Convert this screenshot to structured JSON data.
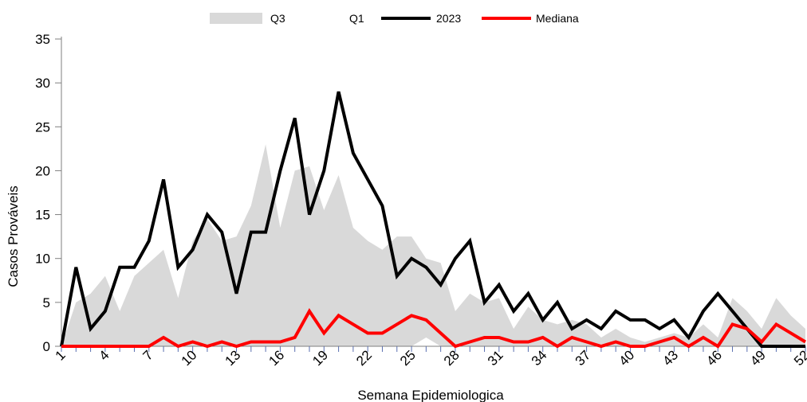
{
  "chart_data": {
    "type": "line",
    "xlabel": "Semana Epidemiologica",
    "ylabel": "Casos Prováveis",
    "ylim": [
      0,
      35
    ],
    "yticks": [
      0,
      5,
      10,
      15,
      20,
      25,
      30,
      35
    ],
    "x": [
      1,
      2,
      3,
      4,
      5,
      6,
      7,
      8,
      9,
      10,
      11,
      12,
      13,
      14,
      15,
      16,
      17,
      18,
      19,
      20,
      21,
      22,
      23,
      24,
      25,
      26,
      27,
      28,
      29,
      30,
      31,
      32,
      33,
      34,
      35,
      36,
      37,
      38,
      39,
      40,
      41,
      42,
      43,
      44,
      45,
      46,
      47,
      48,
      49,
      50,
      51,
      52
    ],
    "xtick_labels": [
      "1",
      "4",
      "7",
      "10",
      "13",
      "16",
      "19",
      "22",
      "25",
      "28",
      "31",
      "34",
      "37",
      "40",
      "43",
      "46",
      "49",
      "52"
    ],
    "grid": false,
    "legend_position": "top",
    "series": [
      {
        "name": "Q3",
        "kind": "area",
        "color": "#d9d9d9",
        "values": [
          0,
          5,
          6,
          8,
          4,
          8,
          9.5,
          11,
          5.5,
          12,
          14.5,
          12,
          12.5,
          16,
          23,
          13.5,
          20,
          20.5,
          15.5,
          19.5,
          13.5,
          12,
          11,
          12.5,
          12.5,
          10,
          9.5,
          4,
          6,
          5,
          5.5,
          2,
          4.5,
          3,
          2.5,
          3,
          2.5,
          1,
          2,
          1,
          0.5,
          1,
          1.5,
          1,
          2.5,
          1,
          5.5,
          4,
          2,
          5.5,
          3.5,
          2
        ]
      },
      {
        "name": "Q1",
        "kind": "area",
        "color": "#ffffff",
        "values": [
          0,
          0,
          0,
          0,
          0,
          0,
          0,
          0,
          0,
          0,
          0,
          0,
          0,
          0,
          0,
          0,
          0,
          0,
          0,
          0,
          0,
          0,
          0,
          0,
          0,
          1,
          0,
          0,
          0,
          0,
          0,
          0,
          0,
          0,
          0,
          0,
          0,
          0,
          0,
          0,
          0,
          0,
          0,
          0,
          0,
          0,
          0,
          0,
          0,
          0,
          0,
          0
        ]
      },
      {
        "name": "2023",
        "kind": "line",
        "color": "#000000",
        "values": [
          0,
          9,
          2,
          4,
          9,
          9,
          12,
          19,
          9,
          11,
          15,
          13,
          6,
          13,
          13,
          20,
          26,
          15,
          20,
          29,
          22,
          19,
          16,
          8,
          10,
          9,
          7,
          10,
          12,
          5,
          7,
          4,
          6,
          3,
          5,
          2,
          3,
          2,
          4,
          3,
          3,
          2,
          3,
          1,
          4,
          6,
          4,
          2,
          0,
          0,
          0,
          0
        ]
      },
      {
        "name": "Mediana",
        "kind": "line",
        "color": "#ff0000",
        "values": [
          0,
          0,
          0,
          0,
          0,
          0,
          0,
          1,
          0,
          0.5,
          0,
          0.5,
          0,
          0.5,
          0.5,
          0.5,
          1,
          4,
          1.5,
          3.5,
          2.5,
          1.5,
          1.5,
          2.5,
          3.5,
          3,
          1.5,
          0,
          0.5,
          1,
          1,
          0.5,
          0.5,
          1,
          0,
          1,
          0.5,
          0,
          0.5,
          0,
          0,
          0.5,
          1,
          0,
          1,
          0,
          2.5,
          2,
          0.5,
          2.5,
          1.5,
          0.5
        ]
      }
    ]
  }
}
